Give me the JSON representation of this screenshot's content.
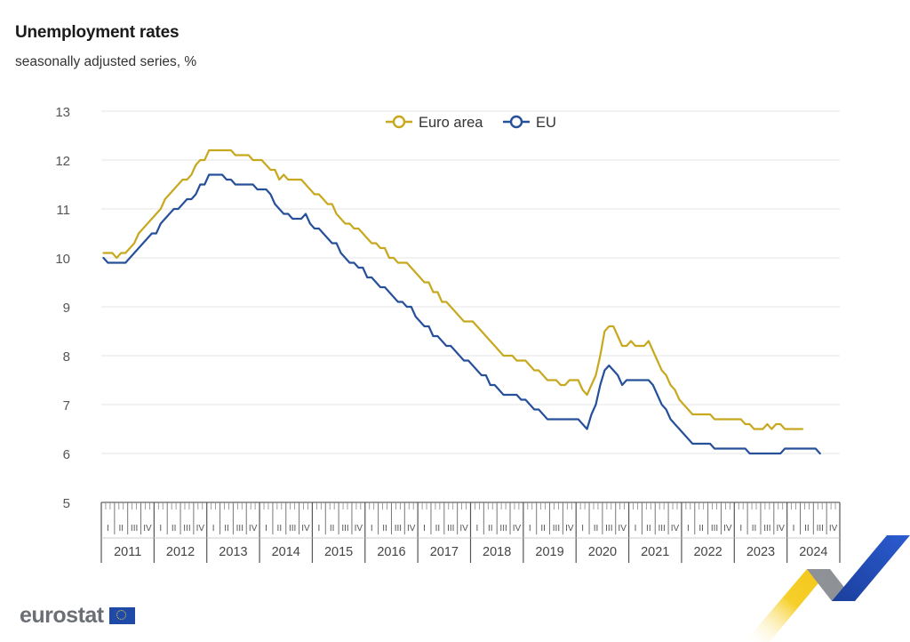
{
  "header": {
    "title": "Unemployment rates",
    "subtitle": "seasonally adjusted series, %"
  },
  "footer": {
    "brand": "eurostat"
  },
  "colors": {
    "euro_area": "#c8a81e",
    "eu": "#27509b",
    "grid": "#e6e6e6",
    "axis_text": "#555555"
  },
  "chart_data": {
    "type": "line",
    "title": "Unemployment rates",
    "subtitle": "seasonally adjusted series, %",
    "xlabel": "",
    "ylabel": "",
    "ylim": [
      5,
      13
    ],
    "yticks": [
      "5",
      "6",
      "7",
      "8",
      "9",
      "10",
      "11",
      "12",
      "13"
    ],
    "x_start": "2011-01",
    "frequency": "monthly",
    "years": [
      "2011",
      "2012",
      "2013",
      "2014",
      "2015",
      "2016",
      "2017",
      "2018",
      "2019",
      "2020",
      "2021",
      "2022",
      "2023",
      "2024"
    ],
    "quarters": [
      "I",
      "II",
      "III",
      "IV"
    ],
    "legend": [
      "Euro area",
      "EU"
    ],
    "legend_position": "top-center",
    "series": [
      {
        "name": "Euro area",
        "color": "#c8a81e",
        "values": [
          10.1,
          10.1,
          10.1,
          10.0,
          10.1,
          10.1,
          10.2,
          10.3,
          10.5,
          10.6,
          10.7,
          10.8,
          10.9,
          11.0,
          11.2,
          11.3,
          11.4,
          11.5,
          11.6,
          11.6,
          11.7,
          11.9,
          12.0,
          12.0,
          12.2,
          12.2,
          12.2,
          12.2,
          12.2,
          12.2,
          12.1,
          12.1,
          12.1,
          12.1,
          12.0,
          12.0,
          12.0,
          11.9,
          11.8,
          11.8,
          11.6,
          11.7,
          11.6,
          11.6,
          11.6,
          11.6,
          11.5,
          11.4,
          11.3,
          11.3,
          11.2,
          11.1,
          11.1,
          10.9,
          10.8,
          10.7,
          10.7,
          10.6,
          10.6,
          10.5,
          10.4,
          10.3,
          10.3,
          10.2,
          10.2,
          10.0,
          10.0,
          9.9,
          9.9,
          9.9,
          9.8,
          9.7,
          9.6,
          9.5,
          9.5,
          9.3,
          9.3,
          9.1,
          9.1,
          9.0,
          8.9,
          8.8,
          8.7,
          8.7,
          8.7,
          8.6,
          8.5,
          8.4,
          8.3,
          8.2,
          8.1,
          8.0,
          8.0,
          8.0,
          7.9,
          7.9,
          7.9,
          7.8,
          7.7,
          7.7,
          7.6,
          7.5,
          7.5,
          7.5,
          7.4,
          7.4,
          7.5,
          7.5,
          7.5,
          7.3,
          7.2,
          7.4,
          7.6,
          8.0,
          8.5,
          8.6,
          8.6,
          8.4,
          8.2,
          8.2,
          8.3,
          8.2,
          8.2,
          8.2,
          8.3,
          8.1,
          7.9,
          7.7,
          7.6,
          7.4,
          7.3,
          7.1,
          7.0,
          6.9,
          6.8,
          6.8,
          6.8,
          6.8,
          6.8,
          6.7,
          6.7,
          6.7,
          6.7,
          6.7,
          6.7,
          6.7,
          6.6,
          6.6,
          6.5,
          6.5,
          6.5,
          6.6,
          6.5,
          6.6,
          6.6,
          6.5,
          6.5,
          6.5,
          6.5,
          6.5
        ]
      },
      {
        "name": "EU",
        "color": "#27509b",
        "values": [
          10.0,
          9.9,
          9.9,
          9.9,
          9.9,
          9.9,
          10.0,
          10.1,
          10.2,
          10.3,
          10.4,
          10.5,
          10.5,
          10.7,
          10.8,
          10.9,
          11.0,
          11.0,
          11.1,
          11.2,
          11.2,
          11.3,
          11.5,
          11.5,
          11.7,
          11.7,
          11.7,
          11.7,
          11.6,
          11.6,
          11.5,
          11.5,
          11.5,
          11.5,
          11.5,
          11.4,
          11.4,
          11.4,
          11.3,
          11.1,
          11.0,
          10.9,
          10.9,
          10.8,
          10.8,
          10.8,
          10.9,
          10.7,
          10.6,
          10.6,
          10.5,
          10.4,
          10.3,
          10.3,
          10.1,
          10.0,
          9.9,
          9.9,
          9.8,
          9.8,
          9.6,
          9.6,
          9.5,
          9.4,
          9.4,
          9.3,
          9.2,
          9.1,
          9.1,
          9.0,
          9.0,
          8.8,
          8.7,
          8.6,
          8.6,
          8.4,
          8.4,
          8.3,
          8.2,
          8.2,
          8.1,
          8.0,
          7.9,
          7.9,
          7.8,
          7.7,
          7.6,
          7.6,
          7.4,
          7.4,
          7.3,
          7.2,
          7.2,
          7.2,
          7.2,
          7.1,
          7.1,
          7.0,
          6.9,
          6.9,
          6.8,
          6.7,
          6.7,
          6.7,
          6.7,
          6.7,
          6.7,
          6.7,
          6.7,
          6.6,
          6.5,
          6.8,
          7.0,
          7.4,
          7.7,
          7.8,
          7.7,
          7.6,
          7.4,
          7.5,
          7.5,
          7.5,
          7.5,
          7.5,
          7.5,
          7.4,
          7.2,
          7.0,
          6.9,
          6.7,
          6.6,
          6.5,
          6.4,
          6.3,
          6.2,
          6.2,
          6.2,
          6.2,
          6.2,
          6.1,
          6.1,
          6.1,
          6.1,
          6.1,
          6.1,
          6.1,
          6.1,
          6.0,
          6.0,
          6.0,
          6.0,
          6.0,
          6.0,
          6.0,
          6.0,
          6.1,
          6.1,
          6.1,
          6.1,
          6.1,
          6.1,
          6.1,
          6.1,
          6.0
        ]
      }
    ]
  }
}
